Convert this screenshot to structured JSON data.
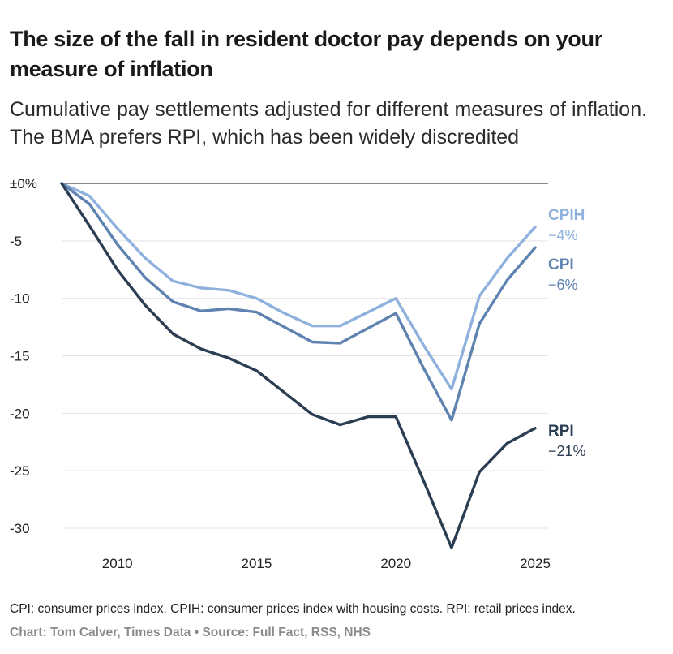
{
  "title": "The size of the fall in resident doctor pay depends on your measure of inflation",
  "subtitle": "Cumulative pay settlements adjusted for different measures of inflation. The BMA prefers RPI, which has been widely discredited",
  "footnote": "CPI: consumer prices index. CPIH: consumer prices index with housing costs. RPI: retail prices index.",
  "credit": "Chart: Tom Calver, Times Data • Source: Full Fact, RSS, NHS",
  "chart_data": {
    "type": "line",
    "title": "The size of the fall in resident doctor pay depends on your measure of inflation",
    "xlabel": "",
    "ylabel": "",
    "xlim": [
      2008,
      2025
    ],
    "ylim": [
      -32,
      0
    ],
    "x_ticks": [
      2010,
      2015,
      2020,
      2025
    ],
    "y_ticks": [
      0,
      -5,
      -10,
      -15,
      -20,
      -25,
      -30
    ],
    "y_tick_labels": [
      "±0%",
      "-5",
      "-10",
      "-15",
      "-20",
      "-25",
      "-30"
    ],
    "x": [
      2008,
      2009,
      2010,
      2011,
      2012,
      2013,
      2014,
      2015,
      2016,
      2017,
      2018,
      2019,
      2020,
      2021,
      2022,
      2023,
      2024,
      2025
    ],
    "series": [
      {
        "name": "CPIH",
        "label": "CPIH",
        "end_label": "−4%",
        "color": "#8fb1dd",
        "values": [
          0,
          -1.1,
          -3.9,
          -6.5,
          -8.5,
          -9.1,
          -9.3,
          -10.0,
          -11.3,
          -12.4,
          -12.4,
          -11.2,
          -10.0,
          -14.1,
          -17.9,
          -9.8,
          -6.5,
          -3.8
        ]
      },
      {
        "name": "CPI",
        "label": "CPI",
        "end_label": "−6%",
        "color": "#5e83b0",
        "values": [
          0,
          -1.8,
          -5.3,
          -8.2,
          -10.3,
          -11.1,
          -10.9,
          -11.2,
          -12.5,
          -13.8,
          -13.9,
          -12.6,
          -11.3,
          -16.1,
          -20.6,
          -12.2,
          -8.4,
          -5.6
        ]
      },
      {
        "name": "RPI",
        "label": "RPI",
        "end_label": "−21%",
        "color": "#2b3d52",
        "values": [
          0,
          -3.7,
          -7.5,
          -10.6,
          -13.1,
          -14.4,
          -15.2,
          -16.3,
          -18.2,
          -20.1,
          -21.0,
          -20.3,
          -20.3,
          -25.9,
          -31.7,
          -25.1,
          -22.6,
          -21.3
        ]
      }
    ]
  }
}
